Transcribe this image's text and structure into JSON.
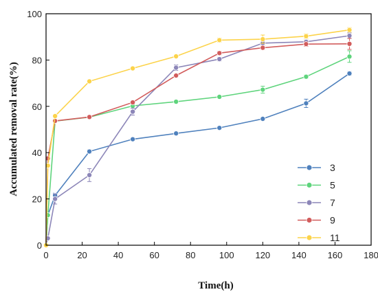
{
  "chart_data": {
    "type": "line",
    "xlabel": "Time(h)",
    "ylabel": "Accumulated removal rate(%)",
    "xlim": [
      0,
      180
    ],
    "ylim": [
      0,
      100
    ],
    "xticks": [
      0,
      20,
      40,
      60,
      80,
      100,
      120,
      140,
      160,
      180
    ],
    "yticks": [
      0,
      20,
      40,
      60,
      80,
      100
    ],
    "grid": false,
    "legend_position": "bottom-right",
    "series": [
      {
        "name": "3",
        "color": "#4f81bd",
        "x": [
          0,
          1,
          5,
          24,
          48,
          72,
          96,
          120,
          144,
          168
        ],
        "y": [
          0,
          13,
          21.5,
          40.5,
          45.8,
          48.3,
          50.7,
          54.6,
          61.3,
          74.2
        ],
        "err": [
          0,
          0,
          1,
          0.8,
          0.6,
          0.6,
          0.6,
          0.7,
          1.8,
          0.8
        ]
      },
      {
        "name": "5",
        "color": "#5ed47c",
        "x": [
          0,
          1,
          5,
          24,
          48,
          72,
          96,
          120,
          144,
          168
        ],
        "y": [
          0,
          13,
          53.6,
          55.3,
          60.2,
          62.0,
          64.1,
          67.2,
          72.8,
          81.5
        ],
        "err": [
          0,
          0,
          0.6,
          0.6,
          0.7,
          0.6,
          0.6,
          1.5,
          0.8,
          2.5
        ]
      },
      {
        "name": "7",
        "color": "#8c86b8",
        "x": [
          0,
          1,
          5,
          24,
          48,
          72,
          96,
          120,
          144,
          168
        ],
        "y": [
          0,
          3,
          20.0,
          30.3,
          57.7,
          76.7,
          80.4,
          87.3,
          87.9,
          90.5
        ],
        "err": [
          0,
          0,
          2.2,
          2.8,
          1.5,
          1.2,
          0.8,
          0.8,
          0.8,
          1.2
        ]
      },
      {
        "name": "9",
        "color": "#d25c5c",
        "x": [
          0,
          1,
          5,
          24,
          48,
          72,
          96,
          120,
          144,
          168
        ],
        "y": [
          0,
          37.5,
          53.7,
          55.4,
          61.7,
          73.3,
          83.0,
          85.3,
          86.9,
          87.0
        ],
        "err": [
          0,
          0,
          0.6,
          0.6,
          0.6,
          0.6,
          0.8,
          0.8,
          1.0,
          2.4
        ]
      },
      {
        "name": "11",
        "color": "#fcd34a",
        "x": [
          0,
          1,
          5,
          24,
          48,
          72,
          96,
          120,
          144,
          168
        ],
        "y": [
          0,
          34.4,
          55.8,
          70.8,
          76.4,
          81.6,
          88.6,
          89.0,
          90.3,
          93.0
        ],
        "err": [
          0,
          0,
          0.6,
          0.6,
          0.7,
          0.6,
          0.9,
          1.8,
          1.0,
          1.0
        ]
      }
    ]
  }
}
